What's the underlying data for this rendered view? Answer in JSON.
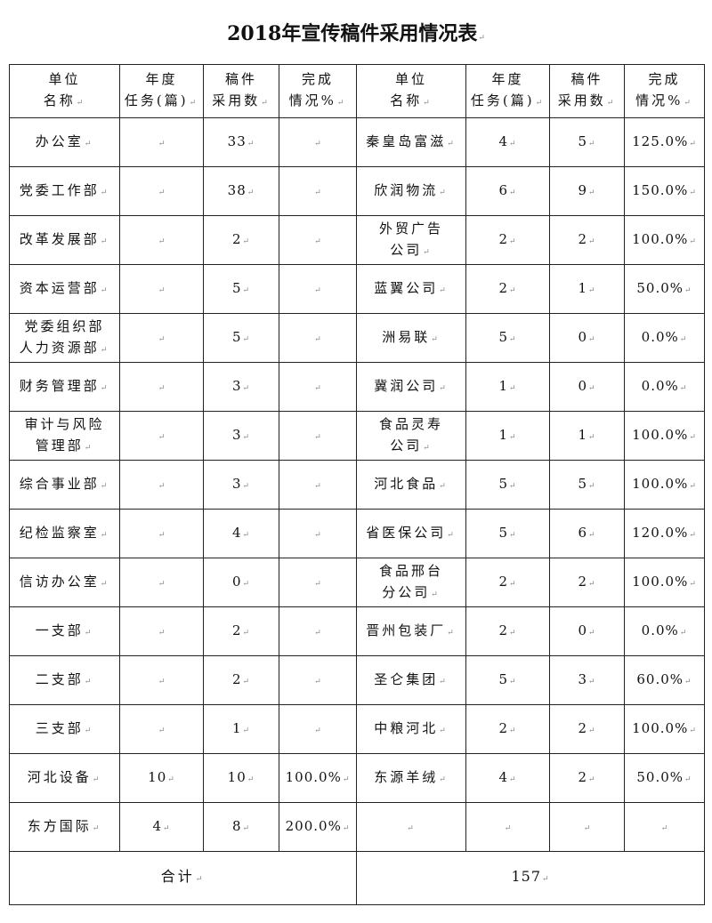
{
  "title": "2018年宣传稿件采用情况表",
  "headers": [
    "单位\n名称",
    "年度\n任务(篇)",
    "稿件\n采用数",
    "完成\n情况%",
    "单位\n名称",
    "年度\n任务(篇)",
    "稿件\n采用数",
    "完成\n情况%"
  ],
  "rows": [
    {
      "left": [
        "办公室",
        "",
        "33",
        ""
      ],
      "right": [
        "秦皇岛富滋",
        "4",
        "5",
        "125.0%"
      ]
    },
    {
      "left": [
        "党委工作部",
        "",
        "38",
        ""
      ],
      "right": [
        "欣润物流",
        "6",
        "9",
        "150.0%"
      ]
    },
    {
      "left": [
        "改革发展部",
        "",
        "2",
        ""
      ],
      "right": [
        "外贸广告\n公司",
        "2",
        "2",
        "100.0%"
      ]
    },
    {
      "left": [
        "资本运营部",
        "",
        "5",
        ""
      ],
      "right": [
        "蓝翼公司",
        "2",
        "1",
        "50.0%"
      ]
    },
    {
      "left": [
        "党委组织部\n人力资源部",
        "",
        "5",
        ""
      ],
      "right": [
        "洲易联",
        "5",
        "0",
        "0.0%"
      ]
    },
    {
      "left": [
        "财务管理部",
        "",
        "3",
        ""
      ],
      "right": [
        "冀润公司",
        "1",
        "0",
        "0.0%"
      ]
    },
    {
      "left": [
        "审计与风险\n管理部",
        "",
        "3",
        ""
      ],
      "right": [
        "食品灵寿\n公司",
        "1",
        "1",
        "100.0%"
      ]
    },
    {
      "left": [
        "综合事业部",
        "",
        "3",
        ""
      ],
      "right": [
        "河北食品",
        "5",
        "5",
        "100.0%"
      ]
    },
    {
      "left": [
        "纪检监察室",
        "",
        "4",
        ""
      ],
      "right": [
        "省医保公司",
        "5",
        "6",
        "120.0%"
      ]
    },
    {
      "left": [
        "信访办公室",
        "",
        "0",
        ""
      ],
      "right": [
        "食品邢台\n分公司",
        "2",
        "2",
        "100.0%"
      ]
    },
    {
      "left": [
        "一支部",
        "",
        "2",
        ""
      ],
      "right": [
        "晋州包装厂",
        "2",
        "0",
        "0.0%"
      ]
    },
    {
      "left": [
        "二支部",
        "",
        "2",
        ""
      ],
      "right": [
        "圣仑集团",
        "5",
        "3",
        "60.0%"
      ]
    },
    {
      "left": [
        "三支部",
        "",
        "1",
        ""
      ],
      "right": [
        "中粮河北",
        "2",
        "2",
        "100.0%"
      ]
    },
    {
      "left": [
        "河北设备",
        "10",
        "10",
        "100.0%"
      ],
      "right": [
        "东源羊绒",
        "4",
        "2",
        "50.0%"
      ]
    },
    {
      "left": [
        "东方国际",
        "4",
        "8",
        "200.0%"
      ],
      "right": [
        "",
        "",
        "",
        ""
      ]
    }
  ],
  "total": {
    "label": "合计",
    "value": "157"
  }
}
